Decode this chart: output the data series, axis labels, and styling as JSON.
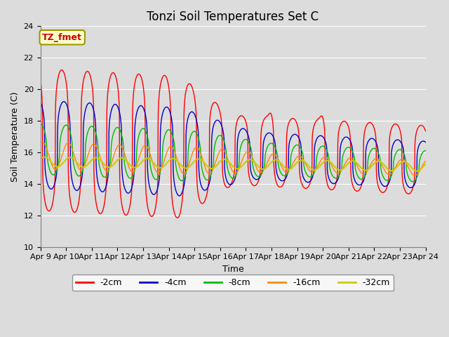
{
  "title": "Tonzi Soil Temperatures Set C",
  "xlabel": "Time",
  "ylabel": "Soil Temperature (C)",
  "ylim": [
    10,
    24
  ],
  "xlim": [
    0,
    360
  ],
  "yticks": [
    10,
    12,
    14,
    16,
    18,
    20,
    22,
    24
  ],
  "xtick_labels": [
    "Apr 9",
    "Apr 10",
    "Apr 11",
    "Apr 12",
    "Apr 13",
    "Apr 14",
    "Apr 15",
    "Apr 16",
    "Apr 17",
    "Apr 18",
    "Apr 19",
    "Apr 20",
    "Apr 21",
    "Apr 22",
    "Apr 23",
    "Apr 24"
  ],
  "xtick_positions": [
    0,
    24,
    48,
    72,
    96,
    120,
    144,
    168,
    192,
    216,
    240,
    264,
    288,
    312,
    336,
    360
  ],
  "background_color": "#dcdcdc",
  "series_colors": [
    "#ff0000",
    "#0000cc",
    "#00bb00",
    "#ff8800",
    "#cccc00"
  ],
  "series_labels": [
    "-2cm",
    "-4cm",
    "-8cm",
    "-16cm",
    "-32cm"
  ],
  "annotation_text": "TZ_fmet",
  "annotation_color": "#cc0000",
  "annotation_bg": "#ffffcc",
  "annotation_edge": "#999900",
  "title_fontsize": 12,
  "axis_fontsize": 9,
  "tick_fontsize": 8
}
